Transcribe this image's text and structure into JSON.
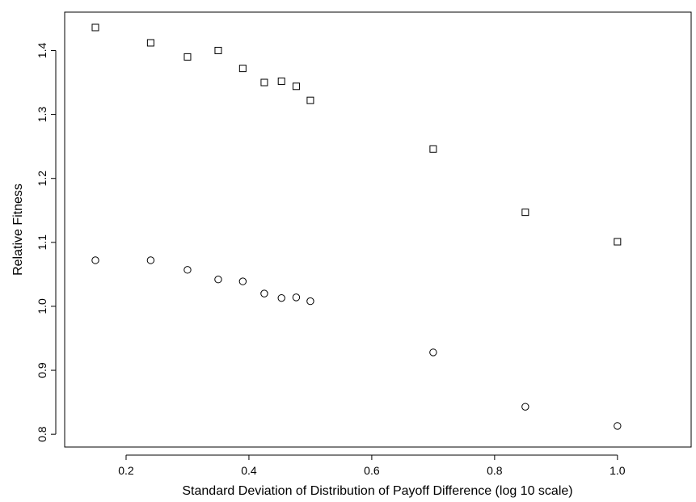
{
  "chart_data": {
    "type": "scatter",
    "title": "",
    "xlabel": "Standard Deviation of Distribution of Payoff Difference (log 10 scale)",
    "ylabel": "Relative Fitness",
    "xlim": [
      0.1,
      1.12
    ],
    "ylim": [
      0.78,
      1.46
    ],
    "x_ticks": [
      "0.2",
      "0.4",
      "0.6",
      "0.8",
      "1.0"
    ],
    "y_ticks": [
      "0.8",
      "0.9",
      "1.0",
      "1.1",
      "1.2",
      "1.3",
      "1.4"
    ],
    "grid": false,
    "x": [
      0.15,
      0.24,
      0.3,
      0.35,
      0.39,
      0.425,
      0.453,
      0.477,
      0.5,
      0.7,
      0.85,
      1.0
    ],
    "series": [
      {
        "marker": "square",
        "values": [
          1.436,
          1.412,
          1.39,
          1.4,
          1.372,
          1.35,
          1.352,
          1.344,
          1.322,
          1.246,
          1.147,
          1.101
        ]
      },
      {
        "marker": "circle",
        "values": [
          1.072,
          1.072,
          1.057,
          1.042,
          1.039,
          1.02,
          1.013,
          1.014,
          1.008,
          0.928,
          0.843,
          0.813
        ]
      }
    ]
  }
}
